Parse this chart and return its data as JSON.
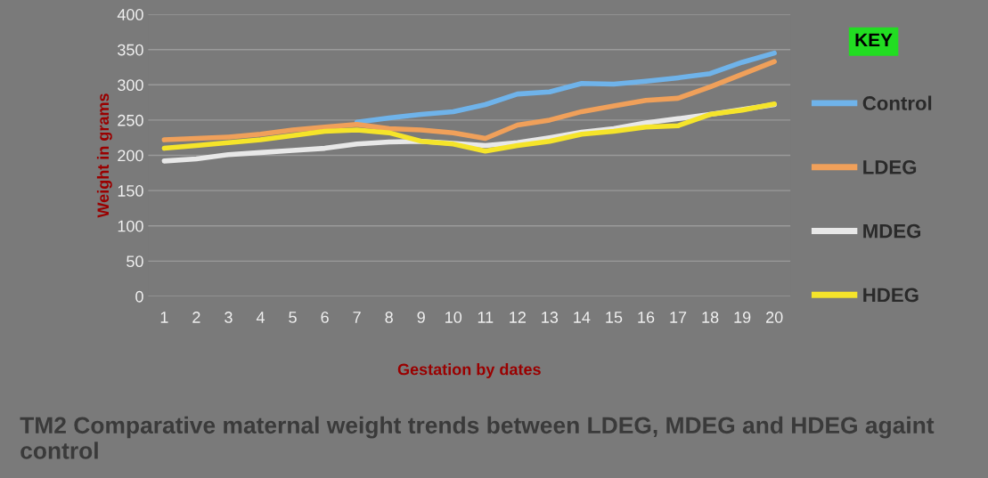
{
  "chart_data": {
    "type": "line",
    "title": "TM2 Comparative maternal weight trends between LDEG, MDEG and HDEG againt control",
    "xlabel": "Gestation by dates",
    "ylabel": "Weight in grams",
    "legend_title": "KEY",
    "categories": [
      "1",
      "2",
      "3",
      "4",
      "5",
      "6",
      "7",
      "8",
      "9",
      "10",
      "11",
      "12",
      "13",
      "14",
      "15",
      "16",
      "17",
      "18",
      "19",
      "20"
    ],
    "series": [
      {
        "name": "Control",
        "color": "#6fb3ea",
        "values": [
          null,
          null,
          null,
          null,
          null,
          null,
          247,
          253,
          258,
          262,
          272,
          287,
          290,
          302,
          301,
          305,
          310,
          316,
          332,
          345
        ]
      },
      {
        "name": "LDEG",
        "color": "#f0a05a",
        "values": [
          222,
          224,
          226,
          230,
          236,
          240,
          244,
          238,
          236,
          232,
          224,
          243,
          250,
          262,
          270,
          278,
          281,
          297,
          315,
          333
        ]
      },
      {
        "name": "MDEG",
        "color": "#e8e8e8",
        "values": [
          192,
          195,
          201,
          204,
          207,
          210,
          216,
          219,
          220,
          217,
          214,
          218,
          225,
          233,
          238,
          246,
          252,
          258,
          265,
          272
        ]
      },
      {
        "name": "HDEG",
        "color": "#f5e42a",
        "values": [
          210,
          214,
          218,
          222,
          228,
          234,
          236,
          232,
          220,
          216,
          206,
          214,
          220,
          230,
          234,
          240,
          242,
          258,
          264,
          273
        ]
      }
    ],
    "ylim": [
      0,
      400
    ],
    "yticks": [
      0,
      50,
      100,
      150,
      200,
      250,
      300,
      350,
      400
    ],
    "grid": "y",
    "legend": "right",
    "marker": "none",
    "line_style": "solid"
  }
}
